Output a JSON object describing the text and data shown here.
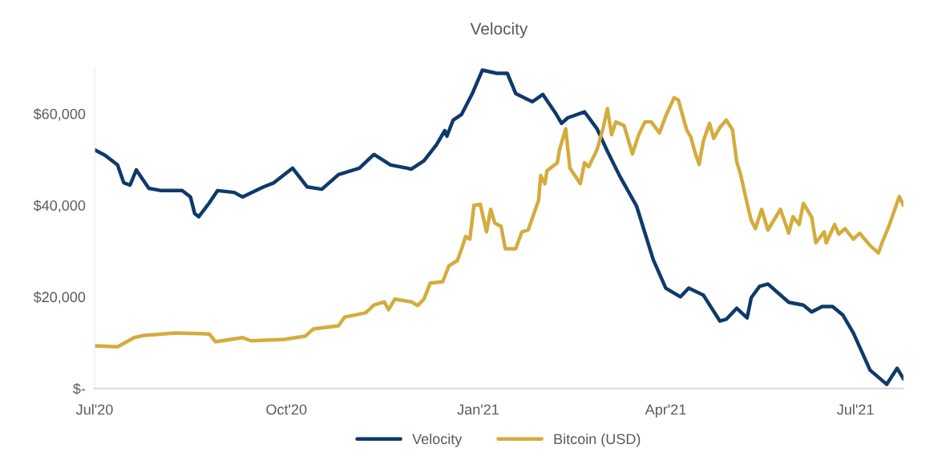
{
  "chart_data": {
    "type": "line",
    "title": "Velocity",
    "xlim": [
      "2020-07-01",
      "2021-07-24"
    ],
    "xticks": [
      {
        "value": "2020-07-01",
        "label": "Jul'20"
      },
      {
        "value": "2020-10-01",
        "label": "Oct'20"
      },
      {
        "value": "2021-01-01",
        "label": "Jan'21"
      },
      {
        "value": "2021-04-01",
        "label": "Apr'21"
      },
      {
        "value": "2021-07-01",
        "label": "Jul'21"
      }
    ],
    "ylim": [
      0,
      70000
    ],
    "yticks": [
      {
        "value": 0,
        "label": "$-"
      },
      {
        "value": 20000,
        "label": "$20,000"
      },
      {
        "value": 40000,
        "label": "$40,000"
      },
      {
        "value": 60000,
        "label": "$60,000"
      }
    ],
    "grid": false,
    "legend": "bottom",
    "marker": "none",
    "line_style": "solid",
    "series": [
      {
        "name": "Velocity",
        "color": "#0e3a6b",
        "x": [
          "2020-07-01",
          "2020-07-06",
          "2020-07-12",
          "2020-07-15",
          "2020-07-18",
          "2020-07-21",
          "2020-07-27",
          "2020-08-02",
          "2020-08-12",
          "2020-08-16",
          "2020-08-18",
          "2020-08-20",
          "2020-08-25",
          "2020-08-29",
          "2020-09-06",
          "2020-09-10",
          "2020-09-20",
          "2020-09-25",
          "2020-10-04",
          "2020-10-11",
          "2020-10-18",
          "2020-10-26",
          "2020-11-05",
          "2020-11-12",
          "2020-11-20",
          "2020-11-30",
          "2020-12-06",
          "2020-12-12",
          "2020-12-16",
          "2020-12-17",
          "2020-12-20",
          "2020-12-24",
          "2020-12-29",
          "2021-01-03",
          "2021-01-10",
          "2021-01-15",
          "2021-01-19",
          "2021-01-27",
          "2021-02-01",
          "2021-02-07",
          "2021-02-10",
          "2021-02-13",
          "2021-02-21",
          "2021-02-27",
          "2021-03-04",
          "2021-03-10",
          "2021-03-18",
          "2021-03-26",
          "2021-04-01",
          "2021-04-08",
          "2021-04-12",
          "2021-04-19",
          "2021-04-27",
          "2021-04-30",
          "2021-05-05",
          "2021-05-10",
          "2021-05-12",
          "2021-05-16",
          "2021-05-20",
          "2021-05-30",
          "2021-06-06",
          "2021-06-10",
          "2021-06-15",
          "2021-06-20",
          "2021-06-25",
          "2021-06-30",
          "2021-07-08",
          "2021-07-16",
          "2021-07-21",
          "2021-07-24"
        ],
        "values": [
          52100,
          50900,
          48800,
          44900,
          44400,
          47700,
          43700,
          43200,
          43200,
          41800,
          38200,
          37500,
          40500,
          43200,
          42800,
          41800,
          44000,
          44900,
          48100,
          44000,
          43500,
          46700,
          48100,
          51100,
          48800,
          47900,
          49700,
          53200,
          56300,
          55100,
          58600,
          59800,
          64200,
          69500,
          68800,
          68800,
          64400,
          62600,
          64200,
          60200,
          57900,
          59100,
          60400,
          56700,
          51800,
          46300,
          39800,
          28100,
          21900,
          20000,
          21900,
          20400,
          14700,
          15100,
          17500,
          15400,
          19800,
          22300,
          22800,
          18800,
          18200,
          16700,
          17900,
          17900,
          16000,
          12100,
          4000,
          900,
          4400,
          2100
        ]
      },
      {
        "name": "Bitcoin (USD)",
        "color": "#d4ac3d",
        "x": [
          "2020-07-01",
          "2020-07-12",
          "2020-07-20",
          "2020-07-25",
          "2020-08-09",
          "2020-08-25",
          "2020-08-28",
          "2020-09-10",
          "2020-09-14",
          "2020-09-30",
          "2020-10-10",
          "2020-10-14",
          "2020-10-26",
          "2020-10-29",
          "2020-11-08",
          "2020-11-12",
          "2020-11-17",
          "2020-11-19",
          "2020-11-22",
          "2020-11-30",
          "2020-12-03",
          "2020-12-06",
          "2020-12-09",
          "2020-12-15",
          "2020-12-18",
          "2020-12-22",
          "2020-12-24",
          "2020-12-26",
          "2020-12-28",
          "2020-12-30",
          "2021-01-02",
          "2021-01-05",
          "2021-01-07",
          "2021-01-09",
          "2021-01-12",
          "2021-01-14",
          "2021-01-19",
          "2021-01-22",
          "2021-01-25",
          "2021-01-30",
          "2021-01-31",
          "2021-02-02",
          "2021-02-03",
          "2021-02-08",
          "2021-02-09",
          "2021-02-12",
          "2021-02-14",
          "2021-02-19",
          "2021-02-21",
          "2021-02-23",
          "2021-02-27",
          "2021-03-02",
          "2021-03-04",
          "2021-03-06",
          "2021-03-08",
          "2021-03-12",
          "2021-03-16",
          "2021-03-19",
          "2021-03-22",
          "2021-03-25",
          "2021-03-29",
          "2021-04-01",
          "2021-04-05",
          "2021-04-07",
          "2021-04-11",
          "2021-04-13",
          "2021-04-15",
          "2021-04-17",
          "2021-04-19",
          "2021-04-22",
          "2021-04-24",
          "2021-04-27",
          "2021-04-30",
          "2021-05-03",
          "2021-05-05",
          "2021-05-07",
          "2021-05-10",
          "2021-05-12",
          "2021-05-14",
          "2021-05-17",
          "2021-05-20",
          "2021-05-26",
          "2021-05-30",
          "2021-06-01",
          "2021-06-04",
          "2021-06-06",
          "2021-06-10",
          "2021-06-12",
          "2021-06-16",
          "2021-06-17",
          "2021-06-21",
          "2021-06-23",
          "2021-06-26",
          "2021-06-30",
          "2021-07-03",
          "2021-07-08",
          "2021-07-12",
          "2021-07-14",
          "2021-07-17",
          "2021-07-22",
          "2021-07-24"
        ],
        "values": [
          9300,
          9100,
          11100,
          11600,
          12100,
          11900,
          10200,
          11100,
          10400,
          10700,
          11400,
          13000,
          13700,
          15600,
          16500,
          18200,
          18900,
          17200,
          19500,
          18900,
          18100,
          19500,
          23000,
          23300,
          26800,
          27900,
          30400,
          33200,
          32600,
          40000,
          40200,
          34200,
          39100,
          36100,
          35400,
          30500,
          30500,
          34200,
          34600,
          41100,
          46500,
          44700,
          47500,
          49300,
          52100,
          56700,
          48100,
          44700,
          49300,
          48400,
          52100,
          57000,
          61100,
          55400,
          58200,
          57400,
          51200,
          55400,
          58200,
          58200,
          55800,
          59500,
          63500,
          63000,
          56500,
          54900,
          51600,
          48900,
          54000,
          57900,
          54600,
          57000,
          58600,
          56500,
          49600,
          46500,
          40400,
          36700,
          34900,
          39100,
          34600,
          39100,
          33900,
          37500,
          35800,
          40400,
          37400,
          31800,
          34200,
          31800,
          35800,
          33700,
          34900,
          32600,
          33900,
          31200,
          29600,
          32100,
          35400,
          41900,
          40000
        ]
      }
    ]
  }
}
